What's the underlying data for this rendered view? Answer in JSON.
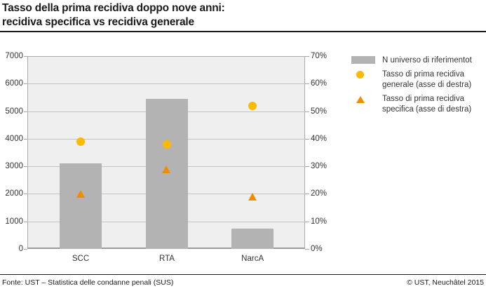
{
  "title": {
    "line1": "Tasso della prima recidiva doppo nove anni:",
    "line2": "recidiva specifica vs recidiva generale"
  },
  "footer": {
    "source": "Fonte: UST – Statistica delle condanne penali (SUS)",
    "copyright": "© UST, Neuchâtel 2015"
  },
  "legend": {
    "items": [
      {
        "marker": "bar-swatch",
        "label": "N universo di riferimentot"
      },
      {
        "marker": "circle",
        "label": "Tasso di prima recidiva generale (asse di destra)"
      },
      {
        "marker": "triangle",
        "label": "Tasso di prima recidiva specifica (asse di destra)"
      }
    ]
  },
  "colors": {
    "bar": "#b3b3b3",
    "circle_marker": "#fbb900",
    "triangle_marker": "#f08c00",
    "plot_background": "#efefef",
    "gridline": "#c3c3c3",
    "axis": "#a6a6a6",
    "rule": "#1a1a1a",
    "text": "#333333"
  },
  "chart_data": {
    "type": "bar",
    "subtype": "combo-bar-scatter",
    "title": "Tasso della prima recidiva doppo nove anni: recidiva specifica vs recidiva generale",
    "categories": [
      "SCC",
      "RTA",
      "NarcA"
    ],
    "series": [
      {
        "name": "N universo di riferimentot",
        "type": "bar",
        "axis": "left",
        "color": "#b3b3b3",
        "values": [
          3100,
          5450,
          750
        ]
      },
      {
        "name": "Tasso di prima recidiva generale (asse di destra)",
        "type": "scatter",
        "marker": "circle",
        "axis": "right",
        "color": "#fbb900",
        "values": [
          39,
          38,
          52
        ]
      },
      {
        "name": "Tasso di prima recidiva specifica (asse di destra)",
        "type": "scatter",
        "marker": "triangle",
        "axis": "right",
        "color": "#f08c00",
        "values": [
          20,
          29,
          19
        ]
      }
    ],
    "left_axis": {
      "min": 0,
      "max": 7000,
      "step": 1000,
      "ticks": [
        "0",
        "1000",
        "2000",
        "3000",
        "4000",
        "5000",
        "6000",
        "7000"
      ]
    },
    "right_axis": {
      "min": 0,
      "max": 70,
      "step": 10,
      "ticks": [
        "0%",
        "10%",
        "20%",
        "30%",
        "40%",
        "50%",
        "60%",
        "70%"
      ]
    },
    "grid": true,
    "legend_position": "right"
  }
}
